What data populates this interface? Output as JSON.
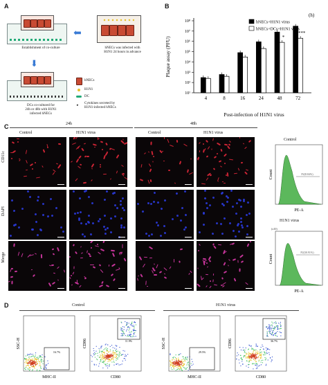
{
  "panels": {
    "a": "A",
    "b": "B",
    "c": "C",
    "d": "D"
  },
  "panel_a": {
    "steps": {
      "coculture": "Establishment of co-culture",
      "infected": "hNECs was infected with\nH1N1 24 hours in advance",
      "dcs": "DCs co-cultured for\n24h or 48h with H1N1\ninfected hNECs"
    },
    "legend": {
      "hnecs": "hNECs",
      "h1n1": "H1N1",
      "dc": "DC",
      "cytokines": "Cytokines secreted by\nH1N1-infected hNECs"
    }
  },
  "chart_data": {
    "type": "bar",
    "ylabel": "Plaque assay (PFU)",
    "xlabel": "Post-infection of H1N1 virus",
    "xunit": "(h)",
    "categories": [
      "4",
      "8",
      "16",
      "24",
      "48",
      "72"
    ],
    "yticks": [
      "10¹",
      "10²",
      "10³",
      "10⁴",
      "10⁵",
      "10⁶",
      "10⁷",
      "10⁸"
    ],
    "log_scale": true,
    "ylim_exp": [
      1,
      8
    ],
    "legend_position": "top-right",
    "series": [
      {
        "name": "hNECs+H1N1 virus",
        "color": "#000000",
        "values": [
          300,
          600,
          80000,
          900000,
          8000000,
          30000000
        ]
      },
      {
        "name": "hNECs+DCs+H1N1 virus",
        "color": "#ffffff",
        "values": [
          250,
          400,
          30000,
          200000,
          800000,
          2000000
        ]
      }
    ],
    "annotations": [
      "",
      "",
      "",
      "",
      "*",
      "***"
    ]
  },
  "panel_c": {
    "time_24": "24h",
    "time_48": "48h",
    "cols": [
      "Control",
      "H1N1 virus",
      "Control",
      "H1N1 virus"
    ],
    "rows": [
      "CD11c",
      "DAPI",
      "Merge"
    ],
    "flow": [
      {
        "title": "Control",
        "ylabel": "Count",
        "xlabel": "PE-A",
        "gate": "P2(8.84%)"
      },
      {
        "title": "H1N1 virus",
        "ylabel": "Count",
        "xlabel": "PE-A",
        "gate": "P2(30.91%)",
        "scale": "(x10)"
      }
    ]
  },
  "panel_d": {
    "groups": [
      "Control",
      "H1N1 virus"
    ],
    "plots": [
      {
        "ylabel": "SSC-H",
        "xlabel": "MHC-II",
        "gate": "16.7%"
      },
      {
        "ylabel": "CD86",
        "xlabel": "CD80",
        "gate": "11.9%"
      },
      {
        "ylabel": "SSC-H",
        "xlabel": "MHC-II",
        "gate": "29.5%"
      },
      {
        "ylabel": "CD86",
        "xlabel": "CD80",
        "gate": "36.7%"
      }
    ]
  }
}
